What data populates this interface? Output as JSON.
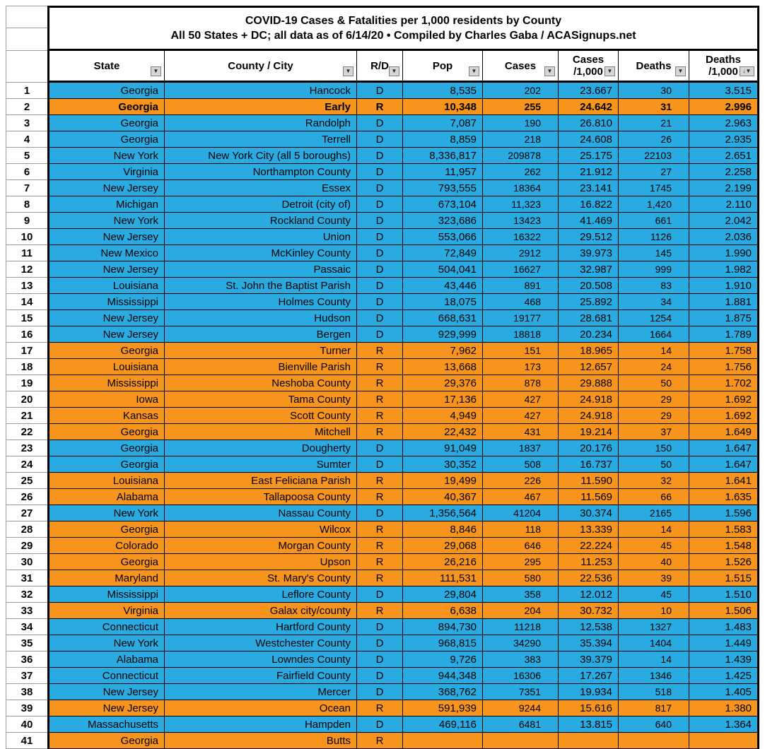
{
  "title": {
    "line1": "COVID-19 Cases & Fatalities per 1,000 residents by County",
    "line2": "All 50 States + DC; all data as of 6/14/20  • Compiled by Charles Gaba / ACASignups.net"
  },
  "colors": {
    "dem_row": "#29abe2",
    "rep_row": "#f7941d",
    "grid_line": "#000000",
    "gutter_line": "#9c9c9c"
  },
  "icons": {
    "filter_dropdown": "▼",
    "sort_descending": "↓"
  },
  "header": {
    "columns": [
      {
        "label": "State",
        "two_line": false,
        "sorted": false
      },
      {
        "label": "County / City",
        "two_line": false,
        "sorted": false
      },
      {
        "label": "R/D",
        "two_line": false,
        "sorted": false
      },
      {
        "label": "Pop",
        "two_line": false,
        "sorted": false
      },
      {
        "label": "Cases",
        "two_line": false,
        "sorted": false
      },
      {
        "label_line1": "Cases",
        "label_line2": "/1,000",
        "two_line": true,
        "sorted": false
      },
      {
        "label": "Deaths",
        "two_line": false,
        "sorted": false
      },
      {
        "label_line1": "Deaths",
        "label_line2": "/1,000",
        "two_line": true,
        "sorted": true
      }
    ]
  },
  "rows": [
    {
      "n": "1",
      "state": "Georgia",
      "county": "Hancock",
      "rd": "D",
      "pop": "8,535",
      "cases": "202",
      "cases_per_1000": "23.667",
      "deaths": "30",
      "deaths_per_1000": "3.515",
      "bold": false
    },
    {
      "n": "2",
      "state": "Georgia",
      "county": "Early",
      "rd": "R",
      "pop": "10,348",
      "cases": "255",
      "cases_per_1000": "24.642",
      "deaths": "31",
      "deaths_per_1000": "2.996",
      "bold": true
    },
    {
      "n": "3",
      "state": "Georgia",
      "county": "Randolph",
      "rd": "D",
      "pop": "7,087",
      "cases": "190",
      "cases_per_1000": "26.810",
      "deaths": "21",
      "deaths_per_1000": "2.963",
      "bold": false
    },
    {
      "n": "4",
      "state": "Georgia",
      "county": "Terrell",
      "rd": "D",
      "pop": "8,859",
      "cases": "218",
      "cases_per_1000": "24.608",
      "deaths": "26",
      "deaths_per_1000": "2.935",
      "bold": false
    },
    {
      "n": "5",
      "state": "New York",
      "county": "New York City (all 5 boroughs)",
      "rd": "D",
      "pop": "8,336,817",
      "cases": "209878",
      "cases_per_1000": "25.175",
      "deaths": "22103",
      "deaths_per_1000": "2.651",
      "bold": false
    },
    {
      "n": "6",
      "state": "Virginia",
      "county": "Northampton County",
      "rd": "D",
      "pop": "11,957",
      "cases": "262",
      "cases_per_1000": "21.912",
      "deaths": "27",
      "deaths_per_1000": "2.258",
      "bold": false
    },
    {
      "n": "7",
      "state": "New Jersey",
      "county": "Essex",
      "rd": "D",
      "pop": "793,555",
      "cases": "18364",
      "cases_per_1000": "23.141",
      "deaths": "1745",
      "deaths_per_1000": "2.199",
      "bold": false
    },
    {
      "n": "8",
      "state": "Michigan",
      "county": "Detroit (city of)",
      "rd": "D",
      "pop": "673,104",
      "cases": "11,323",
      "cases_per_1000": "16.822",
      "deaths": "1,420",
      "deaths_per_1000": "2.110",
      "bold": false
    },
    {
      "n": "9",
      "state": "New York",
      "county": "Rockland County",
      "rd": "D",
      "pop": "323,686",
      "cases": "13423",
      "cases_per_1000": "41.469",
      "deaths": "661",
      "deaths_per_1000": "2.042",
      "bold": false
    },
    {
      "n": "10",
      "state": "New Jersey",
      "county": "Union",
      "rd": "D",
      "pop": "553,066",
      "cases": "16322",
      "cases_per_1000": "29.512",
      "deaths": "1126",
      "deaths_per_1000": "2.036",
      "bold": false
    },
    {
      "n": "11",
      "state": "New Mexico",
      "county": "McKinley County",
      "rd": "D",
      "pop": "72,849",
      "cases": "2912",
      "cases_per_1000": "39.973",
      "deaths": "145",
      "deaths_per_1000": "1.990",
      "bold": false
    },
    {
      "n": "12",
      "state": "New Jersey",
      "county": "Passaic",
      "rd": "D",
      "pop": "504,041",
      "cases": "16627",
      "cases_per_1000": "32.987",
      "deaths": "999",
      "deaths_per_1000": "1.982",
      "bold": false
    },
    {
      "n": "13",
      "state": "Louisiana",
      "county": "St. John the Baptist Parish",
      "rd": "D",
      "pop": "43,446",
      "cases": "891",
      "cases_per_1000": "20.508",
      "deaths": "83",
      "deaths_per_1000": "1.910",
      "bold": false
    },
    {
      "n": "14",
      "state": "Mississippi",
      "county": "Holmes County",
      "rd": "D",
      "pop": "18,075",
      "cases": "468",
      "cases_per_1000": "25.892",
      "deaths": "34",
      "deaths_per_1000": "1.881",
      "bold": false
    },
    {
      "n": "15",
      "state": "New Jersey",
      "county": "Hudson",
      "rd": "D",
      "pop": "668,631",
      "cases": "19177",
      "cases_per_1000": "28.681",
      "deaths": "1254",
      "deaths_per_1000": "1.875",
      "bold": false
    },
    {
      "n": "16",
      "state": "New Jersey",
      "county": "Bergen",
      "rd": "D",
      "pop": "929,999",
      "cases": "18818",
      "cases_per_1000": "20.234",
      "deaths": "1664",
      "deaths_per_1000": "1.789",
      "bold": false
    },
    {
      "n": "17",
      "state": "Georgia",
      "county": "Turner",
      "rd": "R",
      "pop": "7,962",
      "cases": "151",
      "cases_per_1000": "18.965",
      "deaths": "14",
      "deaths_per_1000": "1.758",
      "bold": false
    },
    {
      "n": "18",
      "state": "Louisiana",
      "county": "Bienville Parish",
      "rd": "R",
      "pop": "13,668",
      "cases": "173",
      "cases_per_1000": "12.657",
      "deaths": "24",
      "deaths_per_1000": "1.756",
      "bold": false
    },
    {
      "n": "19",
      "state": "Mississippi",
      "county": "Neshoba County",
      "rd": "R",
      "pop": "29,376",
      "cases": "878",
      "cases_per_1000": "29.888",
      "deaths": "50",
      "deaths_per_1000": "1.702",
      "bold": false
    },
    {
      "n": "20",
      "state": "Iowa",
      "county": "Tama County",
      "rd": "R",
      "pop": "17,136",
      "cases": "427",
      "cases_per_1000": "24.918",
      "deaths": "29",
      "deaths_per_1000": "1.692",
      "bold": false
    },
    {
      "n": "21",
      "state": "Kansas",
      "county": "Scott County",
      "rd": "R",
      "pop": "4,949",
      "cases": "427",
      "cases_per_1000": "24.918",
      "deaths": "29",
      "deaths_per_1000": "1.692",
      "bold": false
    },
    {
      "n": "22",
      "state": "Georgia",
      "county": "Mitchell",
      "rd": "R",
      "pop": "22,432",
      "cases": "431",
      "cases_per_1000": "19.214",
      "deaths": "37",
      "deaths_per_1000": "1.649",
      "bold": false
    },
    {
      "n": "23",
      "state": "Georgia",
      "county": "Dougherty",
      "rd": "D",
      "pop": "91,049",
      "cases": "1837",
      "cases_per_1000": "20.176",
      "deaths": "150",
      "deaths_per_1000": "1.647",
      "bold": false
    },
    {
      "n": "24",
      "state": "Georgia",
      "county": "Sumter",
      "rd": "D",
      "pop": "30,352",
      "cases": "508",
      "cases_per_1000": "16.737",
      "deaths": "50",
      "deaths_per_1000": "1.647",
      "bold": false
    },
    {
      "n": "25",
      "state": "Louisiana",
      "county": "East Feliciana Parish",
      "rd": "R",
      "pop": "19,499",
      "cases": "226",
      "cases_per_1000": "11.590",
      "deaths": "32",
      "deaths_per_1000": "1.641",
      "bold": false
    },
    {
      "n": "26",
      "state": "Alabama",
      "county": "Tallapoosa County",
      "rd": "R",
      "pop": "40,367",
      "cases": "467",
      "cases_per_1000": "11.569",
      "deaths": "66",
      "deaths_per_1000": "1.635",
      "bold": false
    },
    {
      "n": "27",
      "state": "New York",
      "county": "Nassau County",
      "rd": "D",
      "pop": "1,356,564",
      "cases": "41204",
      "cases_per_1000": "30.374",
      "deaths": "2165",
      "deaths_per_1000": "1.596",
      "bold": false
    },
    {
      "n": "28",
      "state": "Georgia",
      "county": "Wilcox",
      "rd": "R",
      "pop": "8,846",
      "cases": "118",
      "cases_per_1000": "13.339",
      "deaths": "14",
      "deaths_per_1000": "1.583",
      "bold": false
    },
    {
      "n": "29",
      "state": "Colorado",
      "county": "Morgan County",
      "rd": "R",
      "pop": "29,068",
      "cases": "646",
      "cases_per_1000": "22.224",
      "deaths": "45",
      "deaths_per_1000": "1.548",
      "bold": false
    },
    {
      "n": "30",
      "state": "Georgia",
      "county": "Upson",
      "rd": "R",
      "pop": "26,216",
      "cases": "295",
      "cases_per_1000": "11.253",
      "deaths": "40",
      "deaths_per_1000": "1.526",
      "bold": false
    },
    {
      "n": "31",
      "state": "Maryland",
      "county": "St. Mary's County",
      "rd": "R",
      "pop": "111,531",
      "cases": "580",
      "cases_per_1000": "22.536",
      "deaths": "39",
      "deaths_per_1000": "1.515",
      "bold": false
    },
    {
      "n": "32",
      "state": "Mississippi",
      "county": "Leflore County",
      "rd": "D",
      "pop": "29,804",
      "cases": "358",
      "cases_per_1000": "12.012",
      "deaths": "45",
      "deaths_per_1000": "1.510",
      "bold": false
    },
    {
      "n": "33",
      "state": "Virginia",
      "county": "Galax city/county",
      "rd": "R",
      "pop": "6,638",
      "cases": "204",
      "cases_per_1000": "30.732",
      "deaths": "10",
      "deaths_per_1000": "1.506",
      "bold": false
    },
    {
      "n": "34",
      "state": "Connecticut",
      "county": "Hartford County",
      "rd": "D",
      "pop": "894,730",
      "cases": "11218",
      "cases_per_1000": "12.538",
      "deaths": "1327",
      "deaths_per_1000": "1.483",
      "bold": false
    },
    {
      "n": "35",
      "state": "New York",
      "county": "Westchester County",
      "rd": "D",
      "pop": "968,815",
      "cases": "34290",
      "cases_per_1000": "35.394",
      "deaths": "1404",
      "deaths_per_1000": "1.449",
      "bold": false
    },
    {
      "n": "36",
      "state": "Alabama",
      "county": "Lowndes County",
      "rd": "D",
      "pop": "9,726",
      "cases": "383",
      "cases_per_1000": "39.379",
      "deaths": "14",
      "deaths_per_1000": "1.439",
      "bold": false
    },
    {
      "n": "37",
      "state": "Connecticut",
      "county": "Fairfield County",
      "rd": "D",
      "pop": "944,348",
      "cases": "16306",
      "cases_per_1000": "17.267",
      "deaths": "1346",
      "deaths_per_1000": "1.425",
      "bold": false
    },
    {
      "n": "38",
      "state": "New Jersey",
      "county": "Mercer",
      "rd": "D",
      "pop": "368,762",
      "cases": "7351",
      "cases_per_1000": "19.934",
      "deaths": "518",
      "deaths_per_1000": "1.405",
      "bold": false
    },
    {
      "n": "39",
      "state": "New Jersey",
      "county": "Ocean",
      "rd": "R",
      "pop": "591,939",
      "cases": "9244",
      "cases_per_1000": "15.616",
      "deaths": "817",
      "deaths_per_1000": "1.380",
      "bold": false
    },
    {
      "n": "40",
      "state": "Massachusetts",
      "county": "Hampden",
      "rd": "D",
      "pop": "469,116",
      "cases": "6481",
      "cases_per_1000": "13.815",
      "deaths": "640",
      "deaths_per_1000": "1.364",
      "bold": false
    },
    {
      "n": "41",
      "state": "Georgia",
      "county": "Butts",
      "rd": "R",
      "pop": "",
      "cases": "",
      "cases_per_1000": "",
      "deaths": "",
      "deaths_per_1000": "",
      "bold": false
    }
  ]
}
